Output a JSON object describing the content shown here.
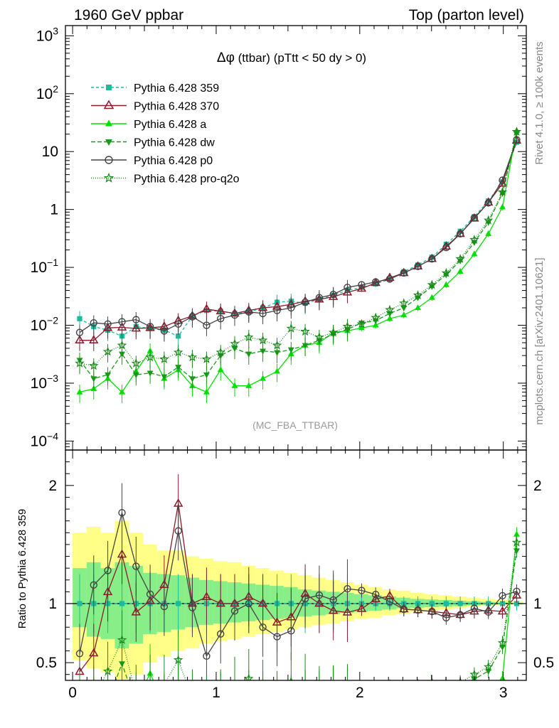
{
  "header": {
    "left": "1960 GeV ppbar",
    "right": "Top (parton level)"
  },
  "side_text": {
    "rivet": "Rivet 4.1.0, ≥ 100k events",
    "mcplots": "mcplots.cern.ch [arXiv:2401.10621]"
  },
  "chart_data": {
    "type": "line",
    "title": "Δφ (ttbar) (pTtt < 50 dy > 0)",
    "title_parts": {
      "symbol": "Δφ",
      "rest": " (ttbar) (pTtt < 50 dy > 0)"
    },
    "watermark": "(MC_FBA_TTBAR)",
    "xlabel": "",
    "ylabel_ratio": "Ratio to Pythia 6.428 359",
    "xlim": [
      -0.05,
      3.16
    ],
    "ylim_main": [
      7e-05,
      1500
    ],
    "yscale_main": "log",
    "ylim_ratio": [
      0.35,
      2.3
    ],
    "x_ticks": [
      "0",
      "1",
      "2",
      "3"
    ],
    "y_ticks_main": [
      {
        "value": 1000,
        "mantissa": "10",
        "exp": "3"
      },
      {
        "value": 100,
        "mantissa": "10",
        "exp": "2"
      },
      {
        "value": 10,
        "mantissa": "10",
        "exp": ""
      },
      {
        "value": 1,
        "mantissa": "1",
        "exp": ""
      },
      {
        "value": 0.1,
        "mantissa": "10",
        "exp": "−1"
      },
      {
        "value": 0.01,
        "mantissa": "10",
        "exp": "−2"
      },
      {
        "value": 0.001,
        "mantissa": "10",
        "exp": "−3"
      },
      {
        "value": 0.0001,
        "mantissa": "10",
        "exp": "−4"
      }
    ],
    "y_ticks_ratio": [
      {
        "value": 0.5,
        "label": "0.5"
      },
      {
        "value": 1,
        "label": "1"
      },
      {
        "value": 2,
        "label": "2"
      }
    ],
    "x": [
      0.049,
      0.147,
      0.245,
      0.344,
      0.442,
      0.54,
      0.638,
      0.736,
      0.834,
      0.933,
      1.031,
      1.129,
      1.227,
      1.325,
      1.424,
      1.522,
      1.62,
      1.718,
      1.816,
      1.914,
      2.013,
      2.111,
      2.209,
      2.307,
      2.405,
      2.503,
      2.602,
      2.7,
      2.798,
      2.896,
      2.994,
      3.093
    ],
    "band_yellow": [
      [
        0.52,
        1.6
      ],
      [
        0.45,
        1.65
      ],
      [
        0.42,
        1.6
      ],
      [
        0.36,
        1.7
      ],
      [
        0.4,
        1.6
      ],
      [
        0.5,
        1.5
      ],
      [
        0.55,
        1.45
      ],
      [
        0.6,
        1.45
      ],
      [
        0.62,
        1.4
      ],
      [
        0.66,
        1.38
      ],
      [
        0.68,
        1.36
      ],
      [
        0.7,
        1.35
      ],
      [
        0.72,
        1.32
      ],
      [
        0.74,
        1.3
      ],
      [
        0.76,
        1.28
      ],
      [
        0.78,
        1.26
      ],
      [
        0.8,
        1.24
      ],
      [
        0.82,
        1.22
      ],
      [
        0.83,
        1.2
      ],
      [
        0.85,
        1.18
      ],
      [
        0.87,
        1.16
      ],
      [
        0.88,
        1.14
      ],
      [
        0.9,
        1.12
      ],
      [
        0.91,
        1.11
      ],
      [
        0.93,
        1.09
      ],
      [
        0.94,
        1.08
      ],
      [
        0.95,
        1.07
      ],
      [
        0.96,
        1.06
      ],
      [
        0.97,
        1.05
      ],
      [
        0.98,
        1.04
      ],
      [
        0.985,
        1.03
      ],
      [
        0.99,
        1.02
      ]
    ],
    "band_green": [
      [
        0.8,
        1.3
      ],
      [
        0.72,
        1.35
      ],
      [
        0.7,
        1.3
      ],
      [
        0.62,
        1.35
      ],
      [
        0.66,
        1.32
      ],
      [
        0.74,
        1.26
      ],
      [
        0.76,
        1.25
      ],
      [
        0.78,
        1.24
      ],
      [
        0.8,
        1.22
      ],
      [
        0.82,
        1.2
      ],
      [
        0.83,
        1.19
      ],
      [
        0.84,
        1.18
      ],
      [
        0.85,
        1.17
      ],
      [
        0.86,
        1.16
      ],
      [
        0.87,
        1.15
      ],
      [
        0.88,
        1.14
      ],
      [
        0.89,
        1.12
      ],
      [
        0.9,
        1.11
      ],
      [
        0.91,
        1.1
      ],
      [
        0.92,
        1.09
      ],
      [
        0.93,
        1.08
      ],
      [
        0.94,
        1.07
      ],
      [
        0.95,
        1.06
      ],
      [
        0.96,
        1.05
      ],
      [
        0.965,
        1.04
      ],
      [
        0.97,
        1.035
      ],
      [
        0.975,
        1.03
      ],
      [
        0.98,
        1.025
      ],
      [
        0.985,
        1.02
      ],
      [
        0.99,
        1.015
      ],
      [
        0.993,
        1.01
      ],
      [
        0.996,
        1.005
      ]
    ],
    "series": [
      {
        "name": "Pythia 6.428 359",
        "color": "#1abc9c",
        "dash": "4,3",
        "marker": "square",
        "values": [
          0.013,
          0.0095,
          0.0082,
          0.0065,
          0.0095,
          0.0088,
          0.0082,
          0.0065,
          0.0145,
          0.018,
          0.0175,
          0.016,
          0.017,
          0.02,
          0.025,
          0.026,
          0.024,
          0.028,
          0.033,
          0.04,
          0.045,
          0.052,
          0.062,
          0.084,
          0.11,
          0.15,
          0.25,
          0.42,
          0.75,
          1.4,
          3.0,
          14.5
        ]
      },
      {
        "name": "Pythia 6.428 370",
        "color": "#8b1a2b",
        "dash": "",
        "marker": "triangle-open",
        "values": [
          0.0055,
          0.0055,
          0.009,
          0.0092,
          0.0088,
          0.009,
          0.0095,
          0.012,
          0.0145,
          0.019,
          0.0175,
          0.016,
          0.018,
          0.02,
          0.021,
          0.023,
          0.026,
          0.028,
          0.031,
          0.037,
          0.043,
          0.054,
          0.066,
          0.08,
          0.104,
          0.14,
          0.23,
          0.38,
          0.7,
          1.32,
          2.8,
          15.5
        ]
      },
      {
        "name": "Pythia 6.428 a",
        "color": "#00e000",
        "dash": "",
        "marker": "triangle",
        "values": [
          0.0007,
          0.0008,
          0.0012,
          0.0007,
          0.0016,
          0.0036,
          0.0012,
          0.0017,
          0.0009,
          0.0007,
          0.0017,
          0.0009,
          0.0009,
          0.0012,
          0.0016,
          0.0032,
          0.0045,
          0.005,
          0.0075,
          0.008,
          0.009,
          0.01,
          0.013,
          0.015,
          0.02,
          0.03,
          0.05,
          0.085,
          0.17,
          0.38,
          1.1,
          23
        ]
      },
      {
        "name": "Pythia 6.428 dw",
        "color": "#1a9a1a",
        "dash": "6,3",
        "marker": "triangle-down",
        "values": [
          0.0025,
          0.0012,
          0.0014,
          0.0032,
          0.0014,
          0.0015,
          0.0013,
          0.0019,
          0.0012,
          0.0014,
          0.003,
          0.004,
          0.0032,
          0.0036,
          0.0034,
          0.0038,
          0.0045,
          0.0055,
          0.007,
          0.0085,
          0.011,
          0.012,
          0.016,
          0.02,
          0.03,
          0.047,
          0.075,
          0.13,
          0.27,
          0.6,
          1.9,
          21
        ]
      },
      {
        "name": "Pythia 6.428 p0",
        "color": "#444444",
        "dash": "",
        "marker": "circle-open",
        "values": [
          0.0075,
          0.011,
          0.0105,
          0.0115,
          0.0125,
          0.0095,
          0.008,
          0.0105,
          0.014,
          0.01,
          0.013,
          0.015,
          0.017,
          0.016,
          0.018,
          0.02,
          0.025,
          0.03,
          0.034,
          0.045,
          0.05,
          0.056,
          0.063,
          0.08,
          0.104,
          0.14,
          0.22,
          0.38,
          0.72,
          1.3,
          3.2,
          16
        ]
      },
      {
        "name": "Pythia 6.428 pro-q2o",
        "color": "#1a8a1a",
        "dash": "1,2",
        "marker": "star",
        "values": [
          0.0022,
          0.002,
          0.0035,
          0.0045,
          0.0022,
          0.0028,
          0.0026,
          0.0034,
          0.0028,
          0.0026,
          0.0034,
          0.0048,
          0.0062,
          0.0055,
          0.0045,
          0.0088,
          0.0078,
          0.0062,
          0.0075,
          0.0095,
          0.0105,
          0.0135,
          0.0185,
          0.024,
          0.033,
          0.05,
          0.08,
          0.14,
          0.3,
          0.65,
          2.0,
          22
        ]
      }
    ]
  }
}
